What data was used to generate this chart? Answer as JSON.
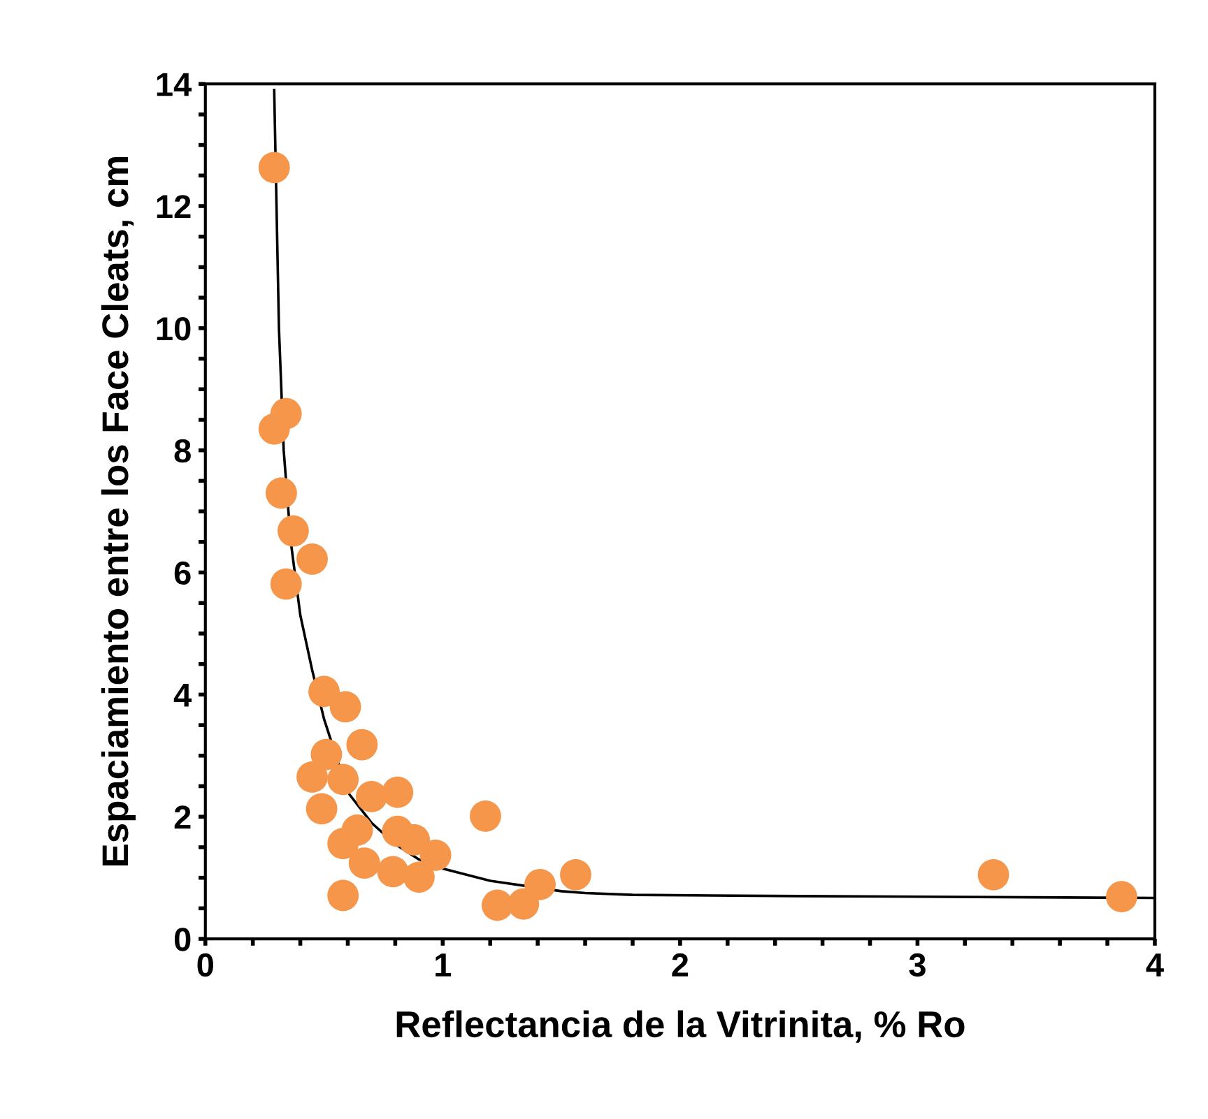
{
  "chart_data": {
    "type": "scatter",
    "xlabel": "Reflectancia de la Vitrinita, % Ro",
    "ylabel": "Espaciamiento entre los Face Cleats, cm",
    "xlim": [
      0,
      4
    ],
    "ylim": [
      0,
      14
    ],
    "xticks": [
      0,
      {
        "value": 0.2,
        "label": null
      },
      {
        "value": 0.4,
        "label": null
      },
      {
        "value": 0.6,
        "label": null
      },
      {
        "value": 0.8,
        "label": null
      },
      1,
      {
        "value": 1.2,
        "label": null
      },
      {
        "value": 1.4,
        "label": null
      },
      {
        "value": 1.6,
        "label": null
      },
      {
        "value": 1.8,
        "label": null
      },
      2,
      {
        "value": 2.2,
        "label": null
      },
      {
        "value": 2.4,
        "label": null
      },
      {
        "value": 2.6,
        "label": null
      },
      {
        "value": 2.8,
        "label": null
      },
      3,
      {
        "value": 3.2,
        "label": null
      },
      {
        "value": 3.4,
        "label": null
      },
      {
        "value": 3.6,
        "label": null
      },
      {
        "value": 3.8,
        "label": null
      },
      4
    ],
    "yticks": [
      0,
      {
        "value": 0.5,
        "label": null
      },
      {
        "value": 1,
        "label": null
      },
      {
        "value": 1.5,
        "label": null
      },
      2,
      {
        "value": 2.5,
        "label": null
      },
      {
        "value": 3,
        "label": null
      },
      {
        "value": 3.5,
        "label": null
      },
      4,
      {
        "value": 4.5,
        "label": null
      },
      {
        "value": 5,
        "label": null
      },
      {
        "value": 5.5,
        "label": null
      },
      6,
      {
        "value": 6.5,
        "label": null
      },
      {
        "value": 7,
        "label": null
      },
      {
        "value": 7.5,
        "label": null
      },
      8,
      {
        "value": 8.5,
        "label": null
      },
      {
        "value": 9,
        "label": null
      },
      {
        "value": 9.5,
        "label": null
      },
      10,
      {
        "value": 10.5,
        "label": null
      },
      {
        "value": 11,
        "label": null
      },
      {
        "value": 11.5,
        "label": null
      },
      12,
      {
        "value": 12.5,
        "label": null
      },
      {
        "value": 13,
        "label": null
      },
      {
        "value": 13.5,
        "label": null
      },
      14
    ],
    "grid": false,
    "legend": false,
    "series": [
      {
        "color": "#f5964a",
        "marker": "circle",
        "x": [
          0.29,
          0.34,
          0.29,
          0.32,
          0.37,
          0.45,
          0.34,
          0.5,
          0.59,
          0.66,
          0.51,
          0.45,
          0.58,
          0.7,
          0.81,
          0.49,
          1.18,
          0.64,
          0.81,
          0.88,
          0.58,
          0.67,
          0.97,
          0.79,
          0.9,
          0.58,
          1.23,
          1.34,
          1.41,
          1.56,
          3.32,
          3.86
        ],
        "values": [
          12.63,
          8.6,
          8.35,
          7.3,
          6.68,
          6.22,
          5.81,
          4.05,
          3.8,
          3.18,
          3.02,
          2.65,
          2.61,
          2.33,
          2.4,
          2.13,
          2.01,
          1.78,
          1.76,
          1.62,
          1.56,
          1.24,
          1.37,
          1.1,
          1.01,
          0.71,
          0.55,
          0.57,
          0.89,
          1.05,
          1.05,
          0.69
        ]
      },
      {
        "type": "line",
        "color": "#000000",
        "line_style": "solid",
        "marker": "none",
        "x": [
          0.29,
          0.31,
          0.33,
          0.36,
          0.4,
          0.45,
          0.5,
          0.6,
          0.7,
          0.8,
          0.9,
          1.0,
          1.2,
          1.5,
          1.6,
          1.8,
          2.5,
          3.0,
          4.0
        ],
        "values": [
          13.9,
          10,
          8.0,
          6.5,
          5.3,
          4.4,
          3.6,
          2.4,
          1.9,
          1.55,
          1.3,
          1.15,
          0.95,
          0.78,
          0.75,
          0.72,
          0.7,
          0.69,
          0.67
        ]
      }
    ]
  }
}
